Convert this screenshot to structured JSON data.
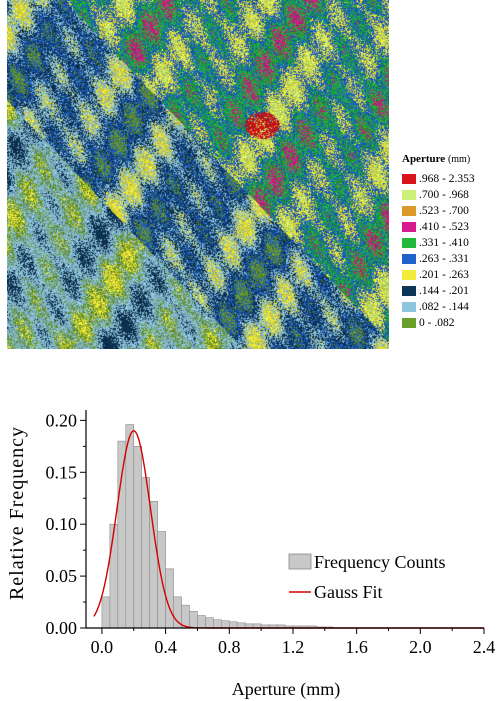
{
  "map": {
    "legend_title": "Aperture",
    "legend_unit": "(mm)",
    "classes": [
      {
        "label": ".968 - 2.353",
        "color": "#d9141b"
      },
      {
        "label": ".700 - .968",
        "color": "#ccf07a"
      },
      {
        "label": ".523 - .700",
        "color": "#d99a2a"
      },
      {
        "label": ".410 - .523",
        "color": "#d61c8c"
      },
      {
        "label": ".331 - .410",
        "color": "#1fb83a"
      },
      {
        "label": ".263 - .331",
        "color": "#1f62c9"
      },
      {
        "label": ".201 - .263",
        "color": "#f2ec3a"
      },
      {
        "label": ".144 - .201",
        "color": "#0d3556"
      },
      {
        "label": ".082 - .144",
        "color": "#8fc6de"
      },
      {
        "label": "0 - .082",
        "color": "#6a9e2a"
      }
    ]
  },
  "chart_data": {
    "type": "bar",
    "xlabel": "Aperture (mm)",
    "ylabel": "Relative Frequency",
    "xlim": [
      -0.1,
      2.4
    ],
    "ylim": [
      0,
      0.21
    ],
    "xticks": [
      "0.0",
      "0.4",
      "0.8",
      "1.2",
      "1.6",
      "2.0",
      "2.4"
    ],
    "yticks": [
      "0.00",
      "0.05",
      "0.10",
      "0.15",
      "0.20"
    ],
    "bin_width": 0.05,
    "series": [
      {
        "name": "Frequency Counts",
        "kind": "histogram",
        "color": "#c8c8c8",
        "bin_starts": [
          0.0,
          0.05,
          0.1,
          0.15,
          0.2,
          0.25,
          0.3,
          0.35,
          0.4,
          0.45,
          0.5,
          0.55,
          0.6,
          0.65,
          0.7,
          0.75,
          0.8,
          0.85,
          0.9,
          0.95,
          1.0,
          1.05,
          1.1,
          1.15,
          1.2,
          1.25,
          1.3,
          1.35,
          1.4
        ],
        "values": [
          0.03,
          0.1,
          0.18,
          0.196,
          0.175,
          0.145,
          0.122,
          0.093,
          0.057,
          0.03,
          0.022,
          0.016,
          0.012,
          0.01,
          0.008,
          0.007,
          0.006,
          0.005,
          0.004,
          0.004,
          0.003,
          0.003,
          0.003,
          0.002,
          0.002,
          0.002,
          0.002,
          0.001,
          0.001
        ]
      },
      {
        "name": "Gauss Fit",
        "kind": "line",
        "color": "#d40000",
        "amplitude": 0.19,
        "center": 0.2,
        "sigma": 0.105
      }
    ],
    "legend_position": "center-right"
  }
}
